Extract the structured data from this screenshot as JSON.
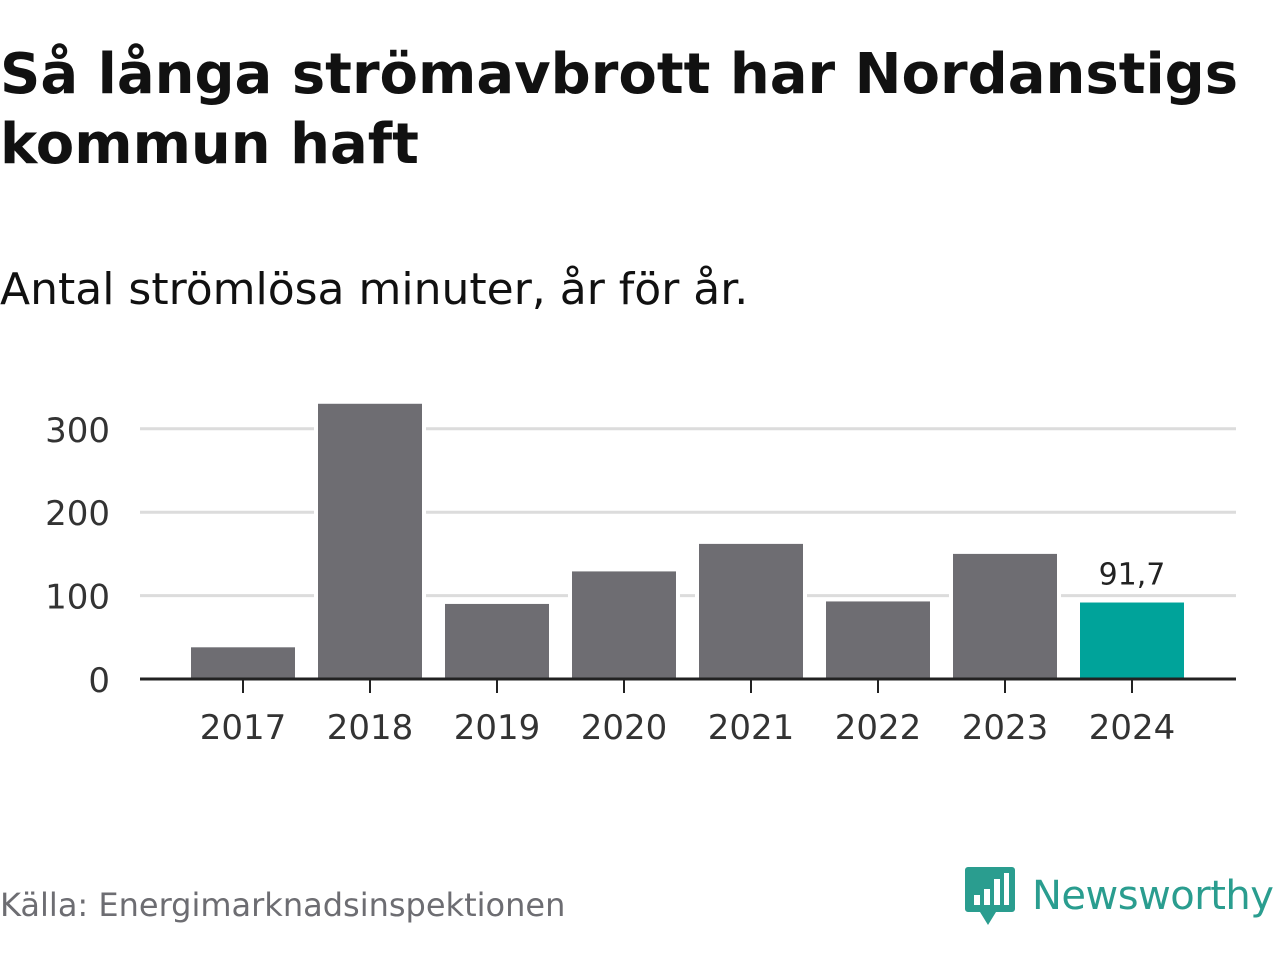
{
  "title": "Så långa strömavbrott har Nordanstigs kommun haft",
  "subtitle": "Antal strömlösa minuter, år för år.",
  "source": "Källa: Energimarknadsinspektionen",
  "brand": {
    "name": "Newsworthy",
    "icon": "newsworthy-logo-icon",
    "color": "#2a9d8f"
  },
  "colors": {
    "bar": "#6e6d72",
    "highlight": "#00a39a",
    "grid": "#dcdcdc",
    "axis": "#222222"
  },
  "chart_data": {
    "type": "bar",
    "title": "Så långa strömavbrott har Nordanstigs kommun haft",
    "subtitle": "Antal strömlösa minuter, år för år.",
    "xlabel": "",
    "ylabel": "",
    "categories": [
      "2017",
      "2018",
      "2019",
      "2020",
      "2021",
      "2022",
      "2023",
      "2024"
    ],
    "values": [
      38,
      330,
      90,
      129,
      162,
      93,
      150,
      91.7
    ],
    "highlight_index": 7,
    "data_labels": [
      {
        "index": 7,
        "text": "91,7"
      }
    ],
    "yticks": [
      "0",
      "100",
      "200",
      "300"
    ],
    "ylim": [
      0,
      350
    ],
    "grid": true
  }
}
